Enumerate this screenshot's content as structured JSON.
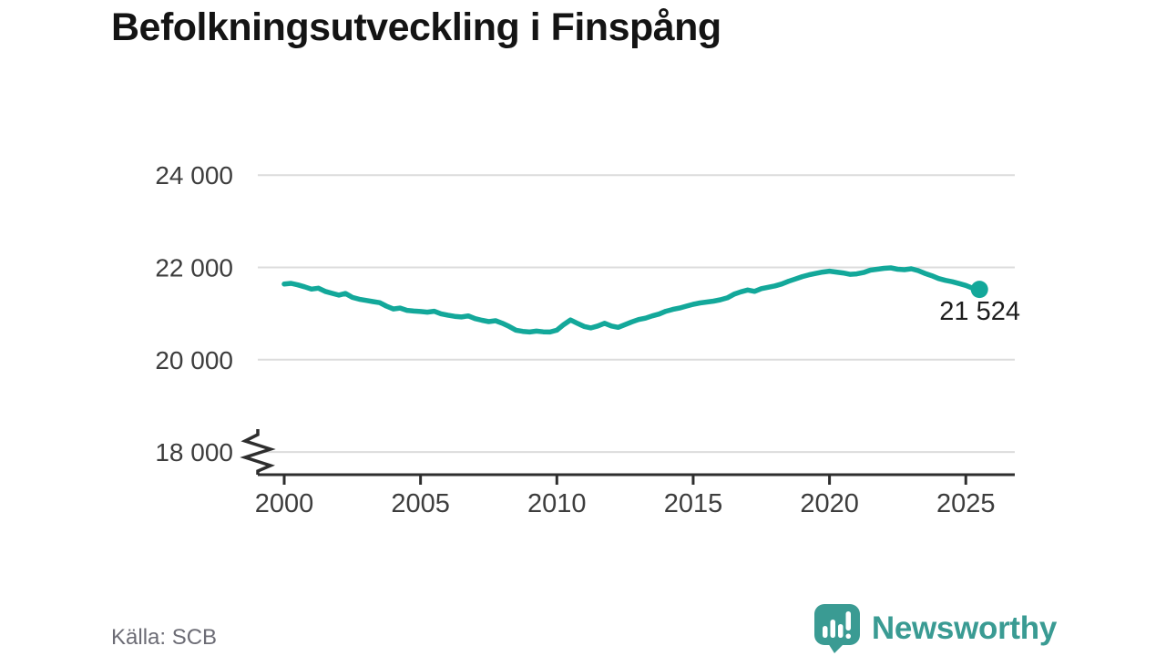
{
  "title": "Befolkningsutveckling i Finspång",
  "source_label": "Källa: SCB",
  "branding": {
    "wordmark": "Newsworthy",
    "icon": "newsworthy-speech-bubble-bar-chart",
    "color": "#3a9b93"
  },
  "colors": {
    "line": "#13a89a",
    "grid": "#dcdcdc",
    "axis": "#2e2e2e",
    "tick_text": "#3d3d3d",
    "end_label_text": "#1d1d1d"
  },
  "chart_data": {
    "type": "line",
    "title": "Befolkningsutveckling i Finspång",
    "xlabel": "",
    "ylabel": "",
    "grid": "horizontal-only",
    "legend": "none",
    "axis_break_at_bottom": true,
    "x_tick_labels": [
      "2000",
      "2005",
      "2010",
      "2015",
      "2020",
      "2025"
    ],
    "x_tick_values": [
      2000,
      2005,
      2010,
      2015,
      2020,
      2025
    ],
    "y_tick_labels": [
      "24 000",
      "22 000",
      "20 000",
      "18 000"
    ],
    "y_tick_values": [
      24000,
      22000,
      20000,
      18000
    ],
    "xlim": [
      1999.05,
      2026.8
    ],
    "ylim_displayed": [
      17550,
      24550
    ],
    "latest_point": {
      "label": "21 524",
      "value": 21524,
      "x": 2025.5
    },
    "series": [
      {
        "name": "Befolkning i Finspång",
        "points": [
          [
            2000.0,
            21640
          ],
          [
            2000.25,
            21655
          ],
          [
            2000.5,
            21620
          ],
          [
            2000.75,
            21580
          ],
          [
            2001.0,
            21530
          ],
          [
            2001.25,
            21550
          ],
          [
            2001.5,
            21480
          ],
          [
            2001.75,
            21440
          ],
          [
            2002.0,
            21400
          ],
          [
            2002.25,
            21435
          ],
          [
            2002.5,
            21350
          ],
          [
            2002.75,
            21310
          ],
          [
            2003.0,
            21285
          ],
          [
            2003.25,
            21260
          ],
          [
            2003.5,
            21235
          ],
          [
            2003.75,
            21160
          ],
          [
            2004.0,
            21100
          ],
          [
            2004.25,
            21120
          ],
          [
            2004.5,
            21070
          ],
          [
            2004.75,
            21055
          ],
          [
            2005.0,
            21045
          ],
          [
            2005.25,
            21030
          ],
          [
            2005.5,
            21050
          ],
          [
            2005.75,
            20995
          ],
          [
            2006.0,
            20965
          ],
          [
            2006.25,
            20940
          ],
          [
            2006.5,
            20925
          ],
          [
            2006.75,
            20950
          ],
          [
            2007.0,
            20890
          ],
          [
            2007.25,
            20855
          ],
          [
            2007.5,
            20825
          ],
          [
            2007.75,
            20845
          ],
          [
            2008.0,
            20790
          ],
          [
            2008.25,
            20720
          ],
          [
            2008.5,
            20640
          ],
          [
            2008.75,
            20615
          ],
          [
            2009.0,
            20600
          ],
          [
            2009.25,
            20620
          ],
          [
            2009.5,
            20605
          ],
          [
            2009.75,
            20600
          ],
          [
            2010.0,
            20640
          ],
          [
            2010.25,
            20760
          ],
          [
            2010.5,
            20860
          ],
          [
            2010.75,
            20790
          ],
          [
            2011.0,
            20720
          ],
          [
            2011.25,
            20690
          ],
          [
            2011.5,
            20730
          ],
          [
            2011.75,
            20790
          ],
          [
            2012.0,
            20730
          ],
          [
            2012.25,
            20700
          ],
          [
            2012.5,
            20760
          ],
          [
            2012.75,
            20820
          ],
          [
            2013.0,
            20870
          ],
          [
            2013.25,
            20900
          ],
          [
            2013.5,
            20950
          ],
          [
            2013.75,
            20990
          ],
          [
            2014.0,
            21050
          ],
          [
            2014.25,
            21090
          ],
          [
            2014.5,
            21120
          ],
          [
            2014.75,
            21160
          ],
          [
            2015.0,
            21200
          ],
          [
            2015.25,
            21230
          ],
          [
            2015.5,
            21250
          ],
          [
            2015.75,
            21270
          ],
          [
            2016.0,
            21300
          ],
          [
            2016.25,
            21340
          ],
          [
            2016.5,
            21420
          ],
          [
            2016.75,
            21470
          ],
          [
            2017.0,
            21510
          ],
          [
            2017.25,
            21480
          ],
          [
            2017.5,
            21540
          ],
          [
            2017.75,
            21570
          ],
          [
            2018.0,
            21600
          ],
          [
            2018.25,
            21640
          ],
          [
            2018.5,
            21700
          ],
          [
            2018.75,
            21750
          ],
          [
            2019.0,
            21800
          ],
          [
            2019.25,
            21840
          ],
          [
            2019.5,
            21870
          ],
          [
            2019.75,
            21900
          ],
          [
            2020.0,
            21920
          ],
          [
            2020.25,
            21900
          ],
          [
            2020.5,
            21880
          ],
          [
            2020.75,
            21850
          ],
          [
            2021.0,
            21860
          ],
          [
            2021.25,
            21890
          ],
          [
            2021.5,
            21940
          ],
          [
            2021.75,
            21960
          ],
          [
            2022.0,
            21980
          ],
          [
            2022.25,
            21990
          ],
          [
            2022.5,
            21960
          ],
          [
            2022.75,
            21950
          ],
          [
            2023.0,
            21970
          ],
          [
            2023.25,
            21930
          ],
          [
            2023.5,
            21870
          ],
          [
            2023.75,
            21820
          ],
          [
            2024.0,
            21760
          ],
          [
            2024.25,
            21720
          ],
          [
            2024.5,
            21690
          ],
          [
            2024.75,
            21650
          ],
          [
            2025.0,
            21610
          ],
          [
            2025.25,
            21550
          ],
          [
            2025.5,
            21524
          ]
        ]
      }
    ]
  }
}
